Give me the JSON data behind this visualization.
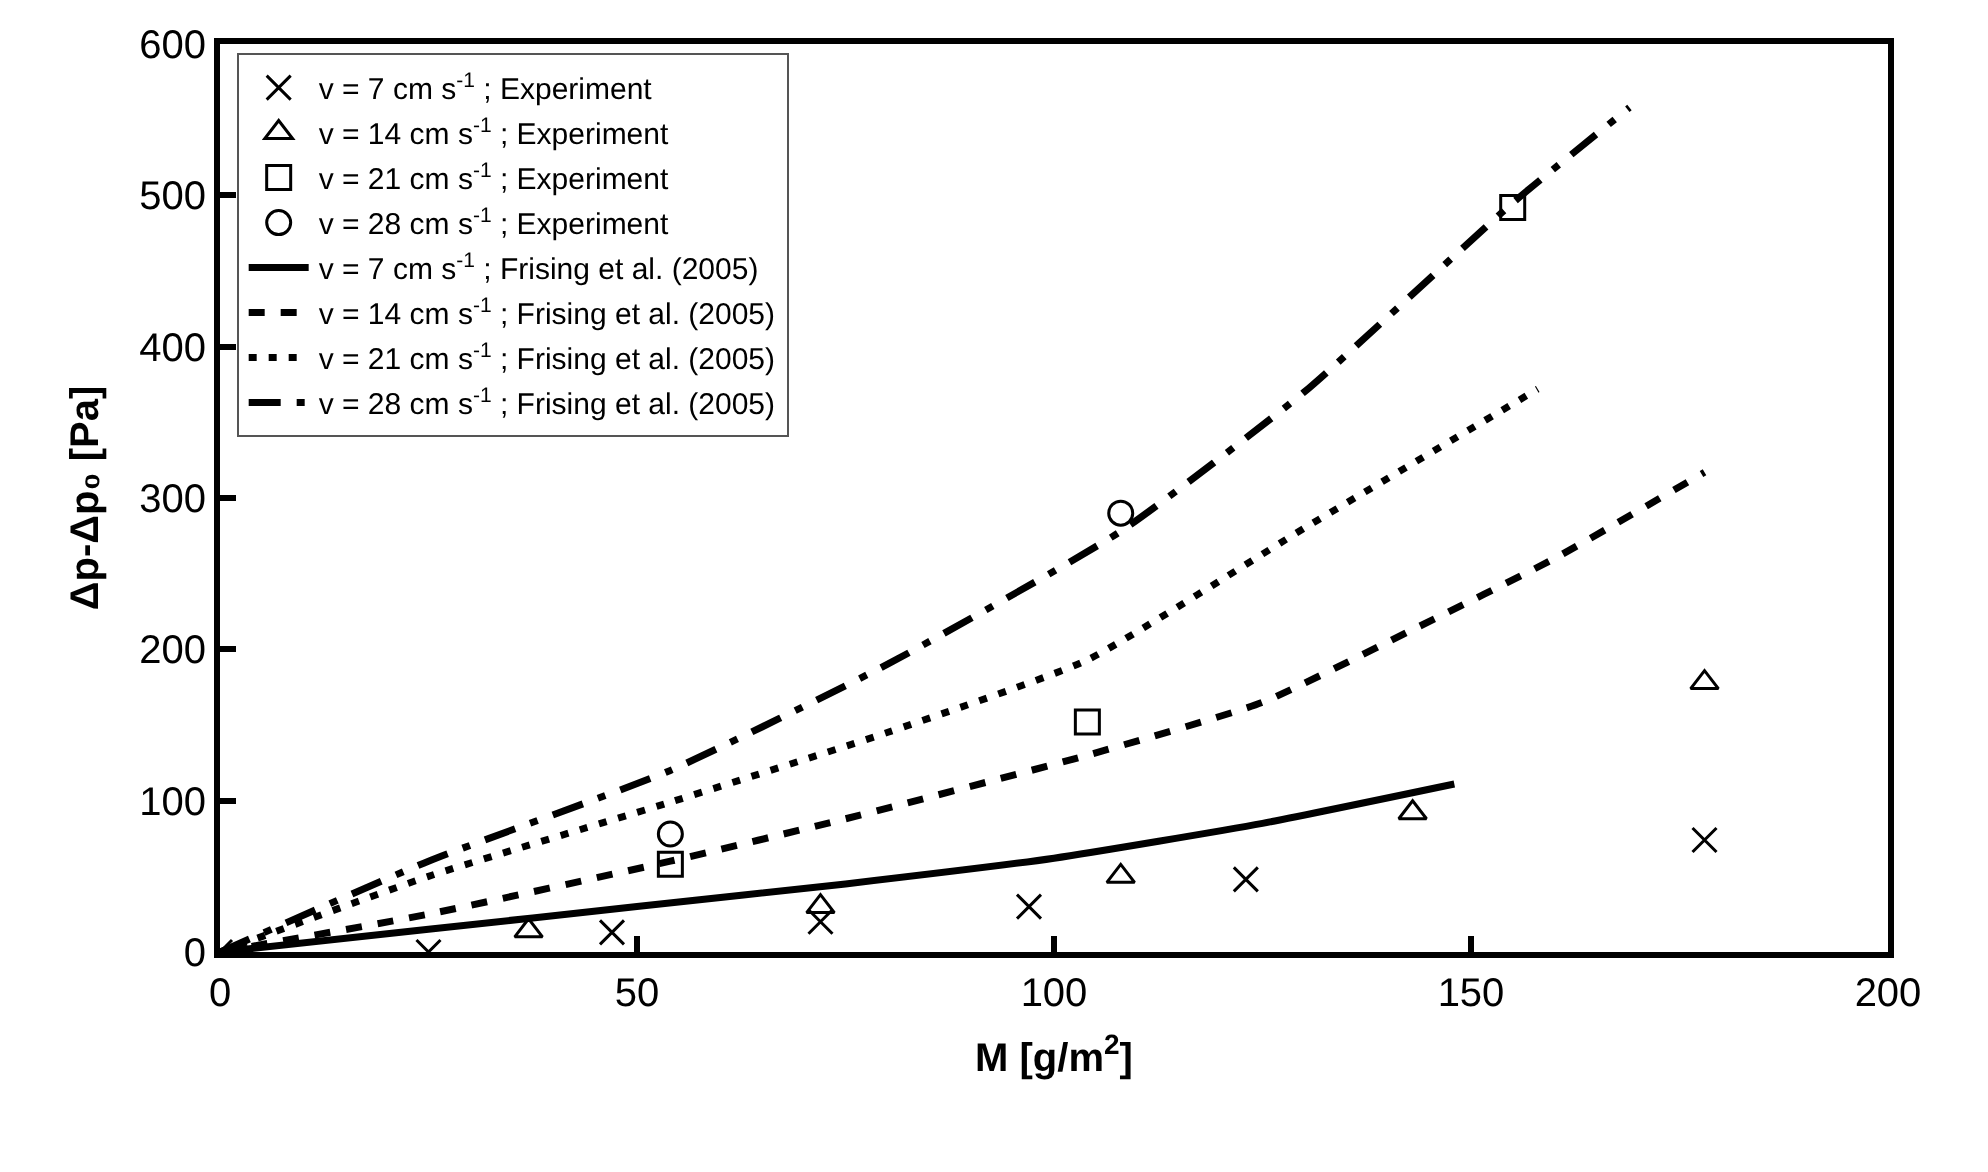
{
  "chart_data": {
    "type": "scatter",
    "xlabel": "M [g/m$^{2}$]",
    "ylabel": "Δp-Δp₀ [Pa]",
    "xlim": [
      0,
      200
    ],
    "xticks": [
      0,
      50,
      100,
      150,
      200
    ],
    "ylim": [
      0,
      600
    ],
    "yticks": [
      0,
      100,
      200,
      300,
      400,
      500,
      600
    ],
    "legend": "top left",
    "series": [
      {
        "name": "v = 7 cm s$^{-1}$ ; Experiment",
        "marker": "cross",
        "color": "#000000",
        "x": [
          0,
          25,
          47,
          72,
          97,
          123,
          178
        ],
        "values": [
          0,
          0,
          13,
          20,
          30,
          48,
          74
        ]
      },
      {
        "name": "v = 14 cm s$^{-1}$ ; Experiment",
        "marker": "triangle",
        "color": "#000000",
        "x": [
          37,
          72,
          108,
          143,
          178
        ],
        "values": [
          14,
          30,
          50,
          92,
          178
        ]
      },
      {
        "name": "v = 21 cm s$^{-1}$ ; Experiment",
        "marker": "square",
        "color": "#000000",
        "x": [
          54,
          104,
          155
        ],
        "values": [
          58,
          152,
          492
        ]
      },
      {
        "name": "v = 28 cm s$^{-1}$ ; Experiment",
        "marker": "circle",
        "color": "#000000",
        "x": [
          54,
          108
        ],
        "values": [
          78,
          290
        ]
      },
      {
        "name": "v = 7 cm s$^{-1}$ ; Frising et al. (2005)",
        "type": "line",
        "line_style": "solid",
        "color": "#000000",
        "x": [
          0,
          25,
          50,
          75,
          100,
          125,
          148
        ],
        "values": [
          0,
          15,
          30,
          45,
          62,
          85,
          111
        ]
      },
      {
        "name": "v = 14 cm s$^{-1}$ ; Frising et al. (2005)",
        "type": "line",
        "line_style": "dashed",
        "color": "#000000",
        "x": [
          0,
          25,
          54,
          75,
          104,
          125,
          143,
          160,
          178
        ],
        "values": [
          0,
          25,
          60,
          88,
          130,
          165,
          213,
          260,
          317
        ]
      },
      {
        "name": "v = 21 cm s$^{-1}$ ; Frising et al. (2005)",
        "type": "line",
        "line_style": "dotted",
        "color": "#000000",
        "x": [
          0,
          25,
          54,
          80,
          104,
          130,
          158
        ],
        "values": [
          0,
          50,
          99,
          145,
          193,
          280,
          372
        ]
      },
      {
        "name": "v = 28 cm s$^{-1}$ ; Frising et al. (2005)",
        "type": "line",
        "line_style": "dashdot",
        "color": "#000000",
        "x": [
          0,
          25,
          54,
          80,
          108,
          130,
          155,
          169
        ],
        "values": [
          0,
          60,
          120,
          190,
          278,
          370,
          495,
          558
        ]
      }
    ]
  }
}
